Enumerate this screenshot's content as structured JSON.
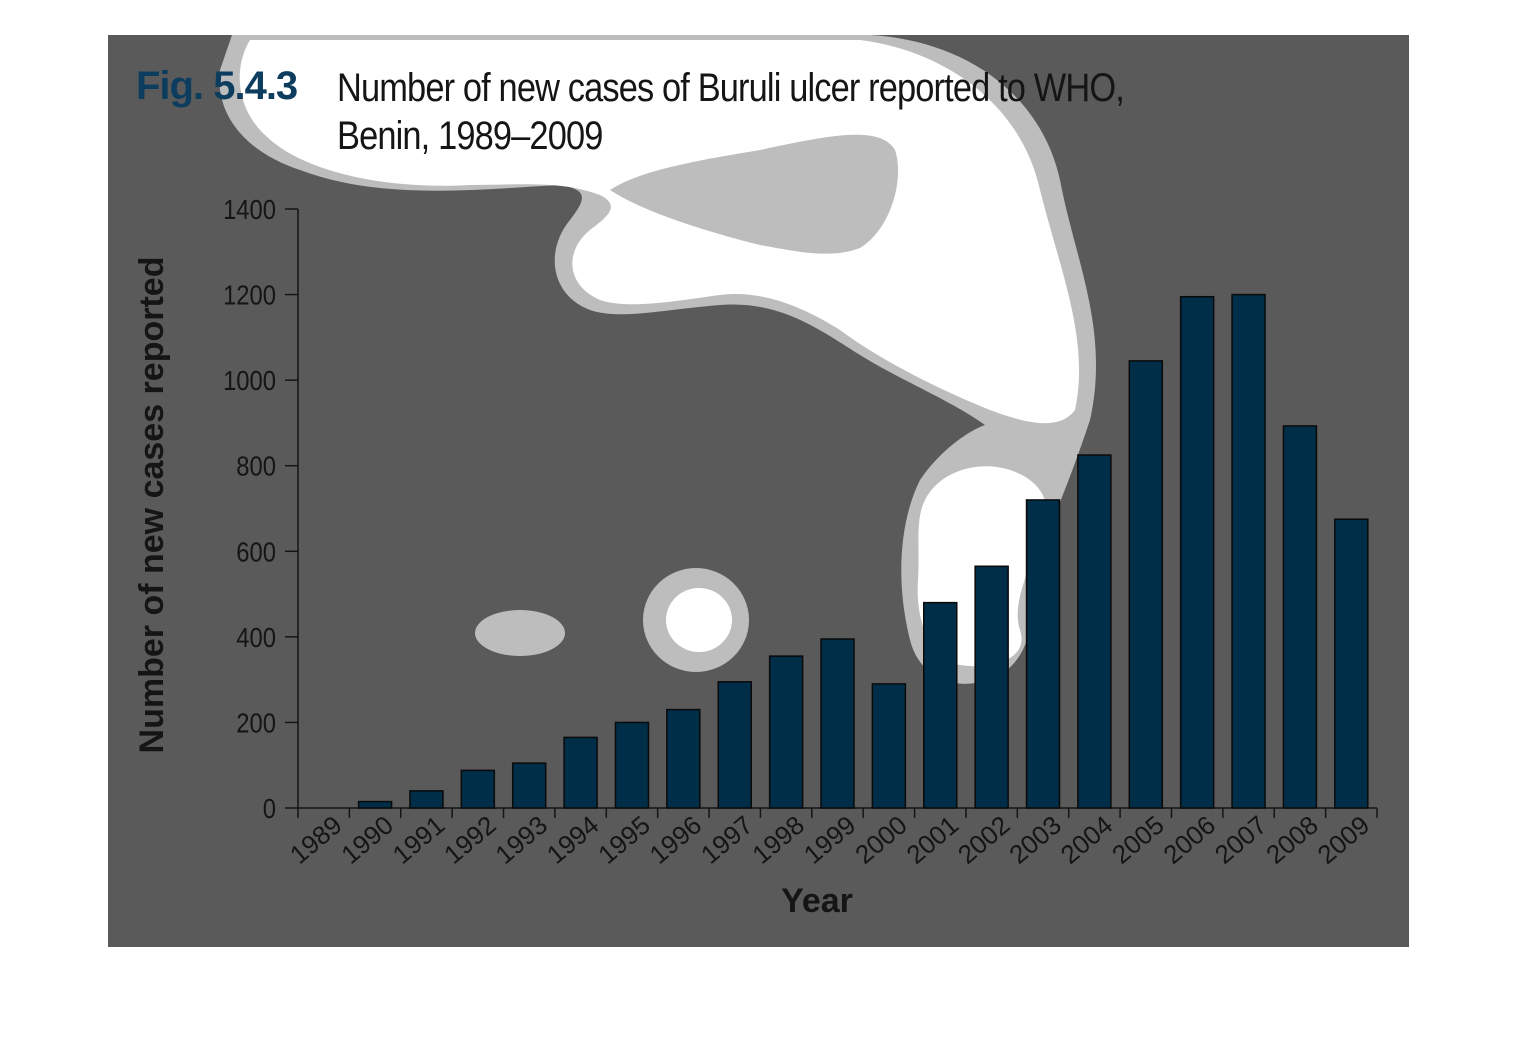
{
  "chart_data": {
    "type": "bar",
    "figure_label": "Fig. 5.4.3",
    "title": "Number of new cases of Buruli ulcer reported to WHO, Benin, 1989–2009",
    "x_label": "Year",
    "y_label": "Number of new cases reported",
    "categories": [
      "1989",
      "1990",
      "1991",
      "1992",
      "1993",
      "1994",
      "1995",
      "1996",
      "1997",
      "1998",
      "1999",
      "2000",
      "2001",
      "2002",
      "2003",
      "2004",
      "2005",
      "2006",
      "2007",
      "2008",
      "2009"
    ],
    "values": [
      0,
      15,
      40,
      88,
      105,
      165,
      200,
      230,
      295,
      355,
      395,
      290,
      480,
      565,
      720,
      825,
      1045,
      1195,
      1200,
      893,
      675
    ],
    "color": "#002d47",
    "ylim": [
      0,
      1400
    ],
    "yticks": [
      0,
      200,
      400,
      600,
      800,
      1000,
      1200,
      1400
    ],
    "grid": false
  }
}
